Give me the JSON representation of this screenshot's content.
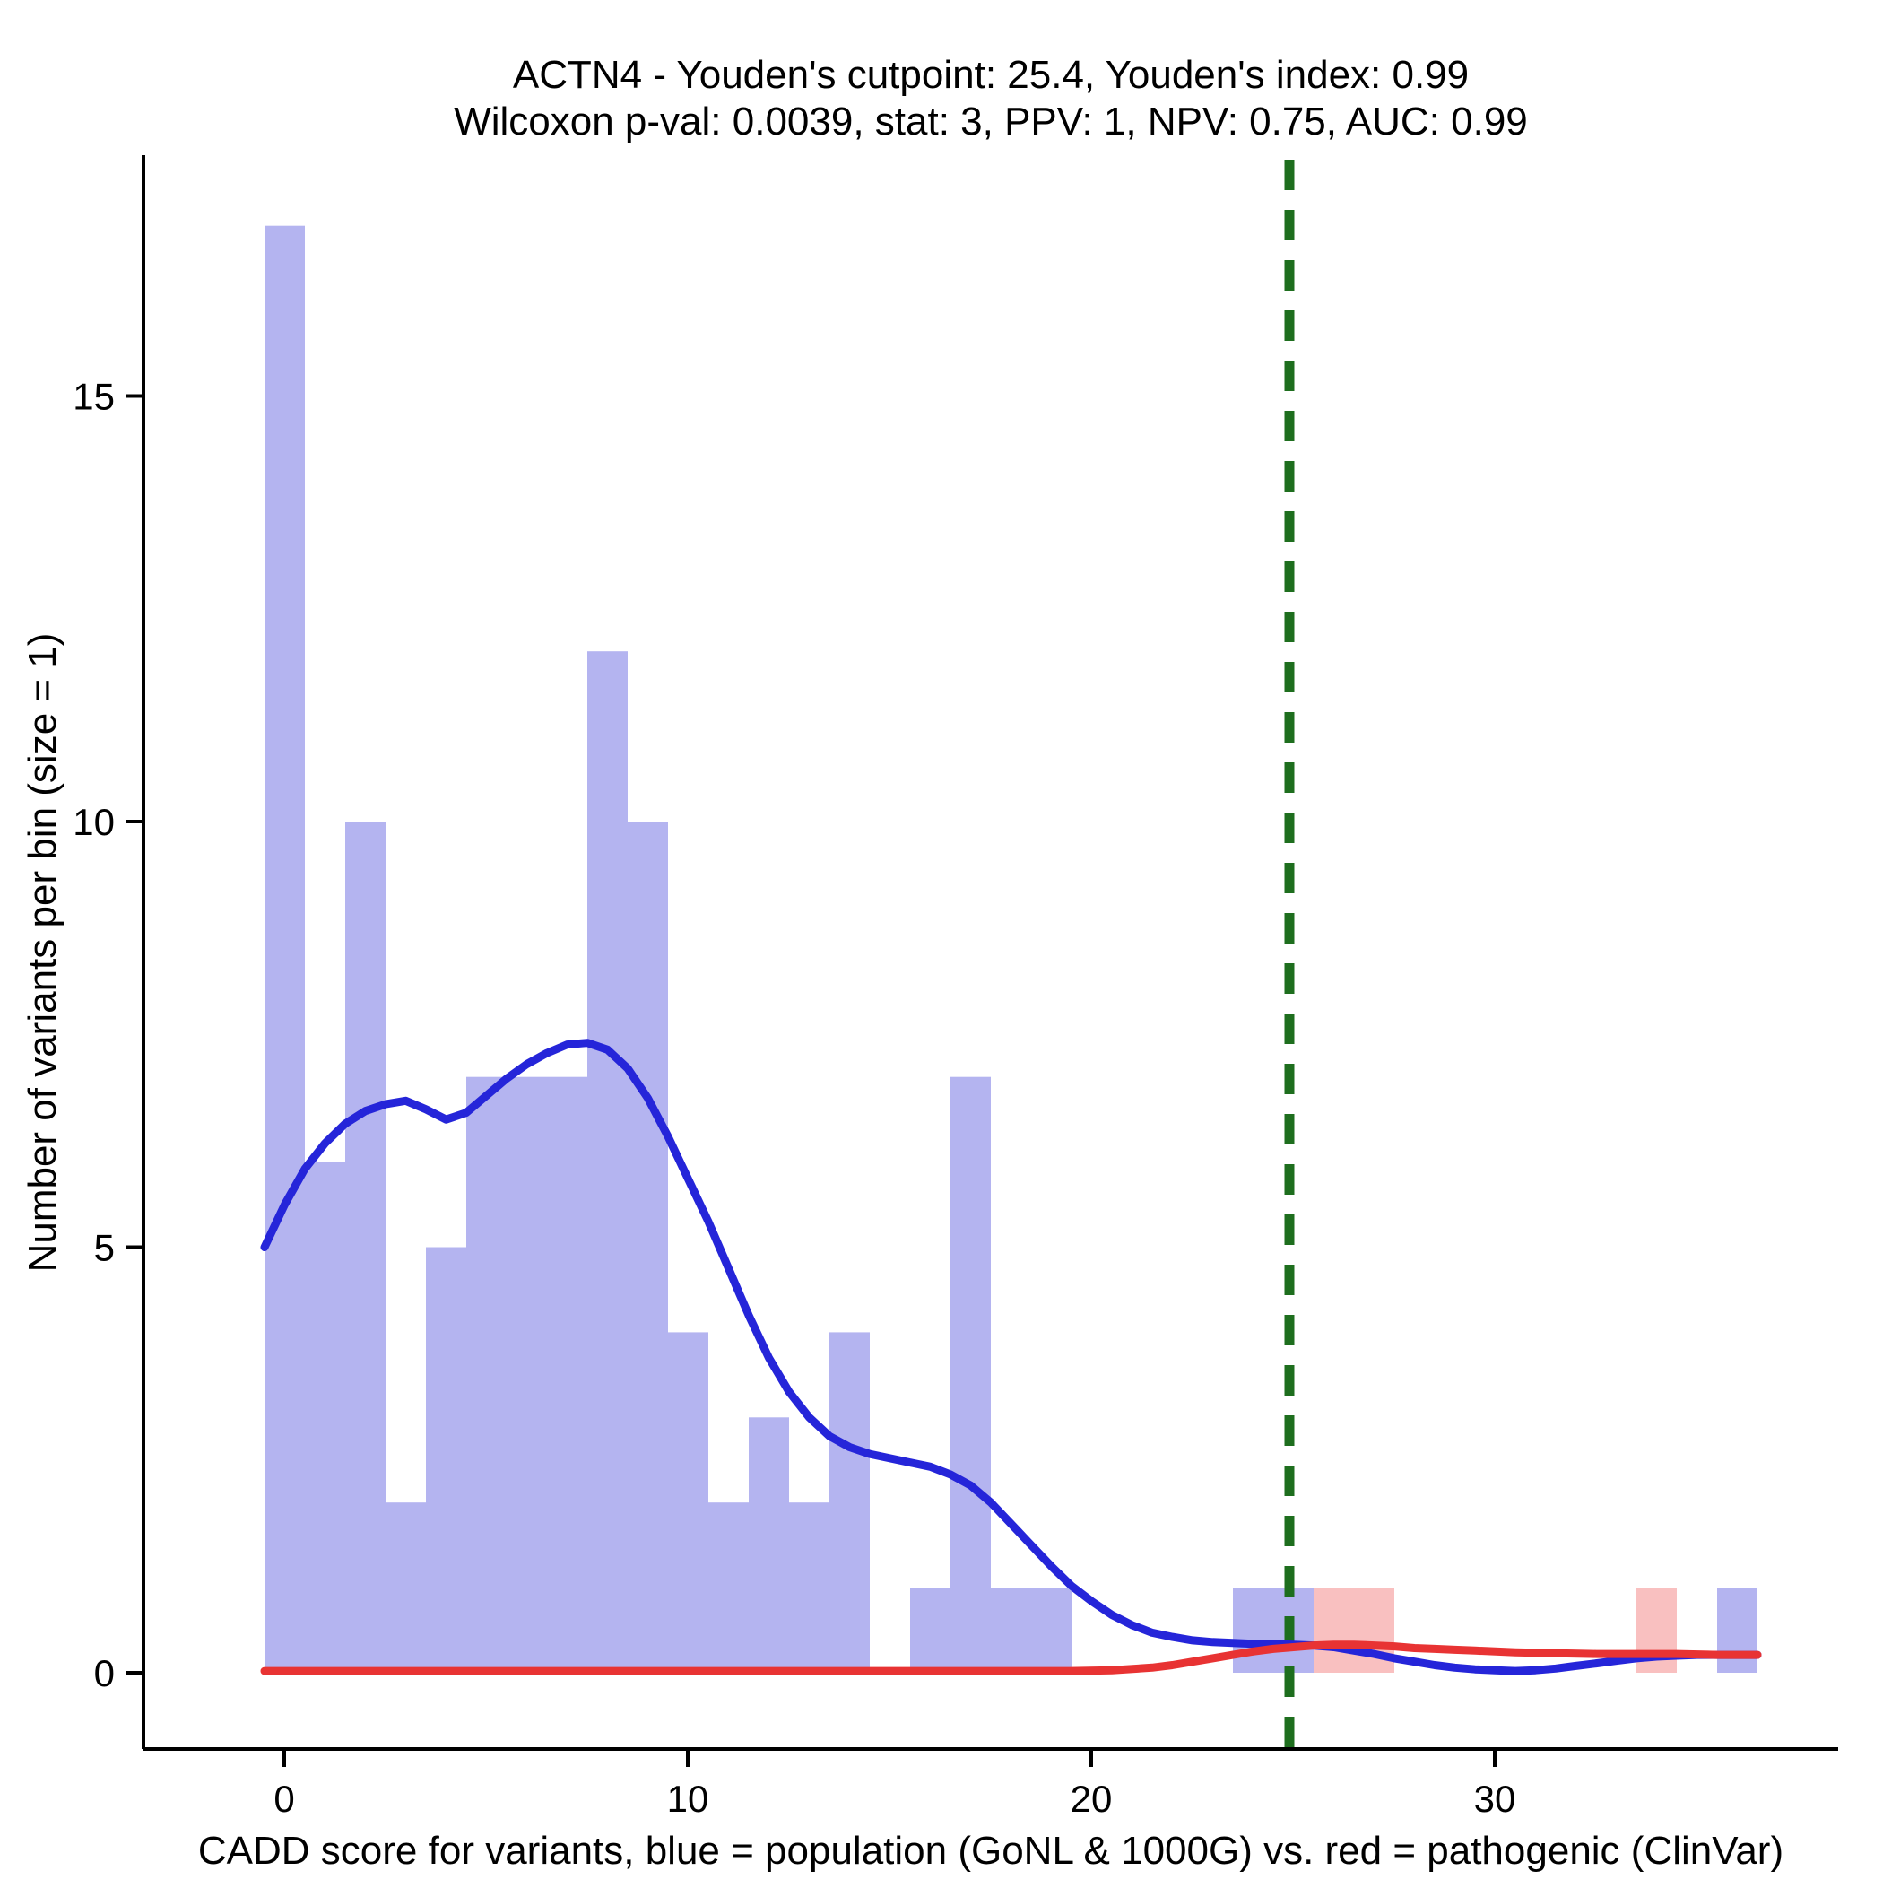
{
  "chart_data": {
    "type": "bar",
    "subtype": "histogram_with_density",
    "title_line1": "ACTN4 - Youden's cutpoint: 25.4, Youden's index: 0.99",
    "title_line2": "Wilcoxon p-val: 0.0039, stat: 3, PPV: 1, NPV: 0.75, AUC: 0.99",
    "xlabel": "CADD score for variants, blue = population (GoNL & 1000G) vs. red = pathogenic (ClinVar)",
    "ylabel": "Number of variants per bin (size = 1)",
    "x_ticks": [
      0,
      10,
      20,
      30
    ],
    "y_ticks": [
      0,
      5,
      10,
      15
    ],
    "xlim": [
      0,
      37
    ],
    "ylim": [
      0,
      17.9
    ],
    "bin_width": 1,
    "grid": false,
    "legend": "none",
    "population_bars": [
      {
        "x": 0,
        "count": 17
      },
      {
        "x": 1,
        "count": 6
      },
      {
        "x": 2,
        "count": 10
      },
      {
        "x": 3,
        "count": 2
      },
      {
        "x": 4,
        "count": 5
      },
      {
        "x": 5,
        "count": 7
      },
      {
        "x": 6,
        "count": 7
      },
      {
        "x": 7,
        "count": 7
      },
      {
        "x": 8,
        "count": 12
      },
      {
        "x": 9,
        "count": 10
      },
      {
        "x": 10,
        "count": 4
      },
      {
        "x": 11,
        "count": 2
      },
      {
        "x": 12,
        "count": 3
      },
      {
        "x": 13,
        "count": 2
      },
      {
        "x": 14,
        "count": 4
      },
      {
        "x": 16,
        "count": 1
      },
      {
        "x": 17,
        "count": 7
      },
      {
        "x": 18,
        "count": 1
      },
      {
        "x": 19,
        "count": 1
      },
      {
        "x": 24,
        "count": 1
      },
      {
        "x": 25,
        "count": 1
      },
      {
        "x": 36,
        "count": 1
      }
    ],
    "pathogenic_bars": [
      {
        "x": 26,
        "count": 1
      },
      {
        "x": 27,
        "count": 1
      },
      {
        "x": 34,
        "count": 1
      }
    ],
    "population_density": [
      [
        0,
        5.0
      ],
      [
        0.5,
        5.5
      ],
      [
        1,
        5.92
      ],
      [
        1.5,
        6.22
      ],
      [
        2,
        6.45
      ],
      [
        2.5,
        6.6
      ],
      [
        3,
        6.68
      ],
      [
        3.5,
        6.72
      ],
      [
        4,
        6.62
      ],
      [
        4.5,
        6.5
      ],
      [
        5,
        6.58
      ],
      [
        5.5,
        6.78
      ],
      [
        6,
        6.98
      ],
      [
        6.5,
        7.15
      ],
      [
        7,
        7.28
      ],
      [
        7.5,
        7.38
      ],
      [
        8,
        7.4
      ],
      [
        8.5,
        7.32
      ],
      [
        9,
        7.1
      ],
      [
        9.5,
        6.75
      ],
      [
        10,
        6.3
      ],
      [
        10.5,
        5.8
      ],
      [
        11,
        5.3
      ],
      [
        11.5,
        4.75
      ],
      [
        12,
        4.2
      ],
      [
        12.5,
        3.7
      ],
      [
        13,
        3.3
      ],
      [
        13.5,
        3.0
      ],
      [
        14,
        2.78
      ],
      [
        14.5,
        2.65
      ],
      [
        15,
        2.57
      ],
      [
        15.5,
        2.52
      ],
      [
        16,
        2.47
      ],
      [
        16.5,
        2.42
      ],
      [
        17,
        2.33
      ],
      [
        17.5,
        2.2
      ],
      [
        18,
        2.0
      ],
      [
        18.5,
        1.75
      ],
      [
        19,
        1.5
      ],
      [
        19.5,
        1.25
      ],
      [
        20,
        1.02
      ],
      [
        20.5,
        0.84
      ],
      [
        21,
        0.68
      ],
      [
        21.5,
        0.56
      ],
      [
        22,
        0.47
      ],
      [
        22.5,
        0.42
      ],
      [
        23,
        0.38
      ],
      [
        23.5,
        0.36
      ],
      [
        24,
        0.35
      ],
      [
        24.5,
        0.34
      ],
      [
        25,
        0.34
      ],
      [
        25.5,
        0.33
      ],
      [
        26,
        0.32
      ],
      [
        26.5,
        0.3
      ],
      [
        27,
        0.26
      ],
      [
        27.5,
        0.22
      ],
      [
        28,
        0.17
      ],
      [
        28.5,
        0.13
      ],
      [
        29,
        0.09
      ],
      [
        29.5,
        0.06
      ],
      [
        30,
        0.04
      ],
      [
        30.5,
        0.03
      ],
      [
        31,
        0.02
      ],
      [
        31.5,
        0.03
      ],
      [
        32,
        0.05
      ],
      [
        32.5,
        0.08
      ],
      [
        33,
        0.11
      ],
      [
        33.5,
        0.14
      ],
      [
        34,
        0.17
      ],
      [
        34.5,
        0.19
      ],
      [
        35,
        0.2
      ],
      [
        35.5,
        0.21
      ],
      [
        36,
        0.21
      ],
      [
        36.5,
        0.21
      ],
      [
        37,
        0.21
      ]
    ],
    "pathogenic_density": [
      [
        0,
        0.02
      ],
      [
        5,
        0.02
      ],
      [
        10,
        0.02
      ],
      [
        15,
        0.02
      ],
      [
        18,
        0.02
      ],
      [
        20,
        0.02
      ],
      [
        21,
        0.03
      ],
      [
        22,
        0.06
      ],
      [
        22.5,
        0.09
      ],
      [
        23,
        0.13
      ],
      [
        23.5,
        0.17
      ],
      [
        24,
        0.21
      ],
      [
        24.5,
        0.25
      ],
      [
        25,
        0.28
      ],
      [
        25.5,
        0.3
      ],
      [
        26,
        0.32
      ],
      [
        26.5,
        0.33
      ],
      [
        27,
        0.33
      ],
      [
        27.5,
        0.32
      ],
      [
        28,
        0.31
      ],
      [
        28.5,
        0.29
      ],
      [
        29,
        0.28
      ],
      [
        29.5,
        0.27
      ],
      [
        30,
        0.26
      ],
      [
        31,
        0.24
      ],
      [
        32,
        0.23
      ],
      [
        33,
        0.22
      ],
      [
        34,
        0.22
      ],
      [
        35,
        0.22
      ],
      [
        36,
        0.21
      ],
      [
        37,
        0.21
      ]
    ],
    "cutpoint_line": {
      "x": 25.4,
      "style": "dashed"
    },
    "colors": {
      "population_bar_fill": "#b4b4f0",
      "pathogenic_bar_fill": "#f9c0c0",
      "population_line": "#2525d9",
      "pathogenic_line": "#e83333",
      "cutpoint_line": "#1e6e1e",
      "axis": "#000000",
      "background": "#ffffff"
    }
  }
}
